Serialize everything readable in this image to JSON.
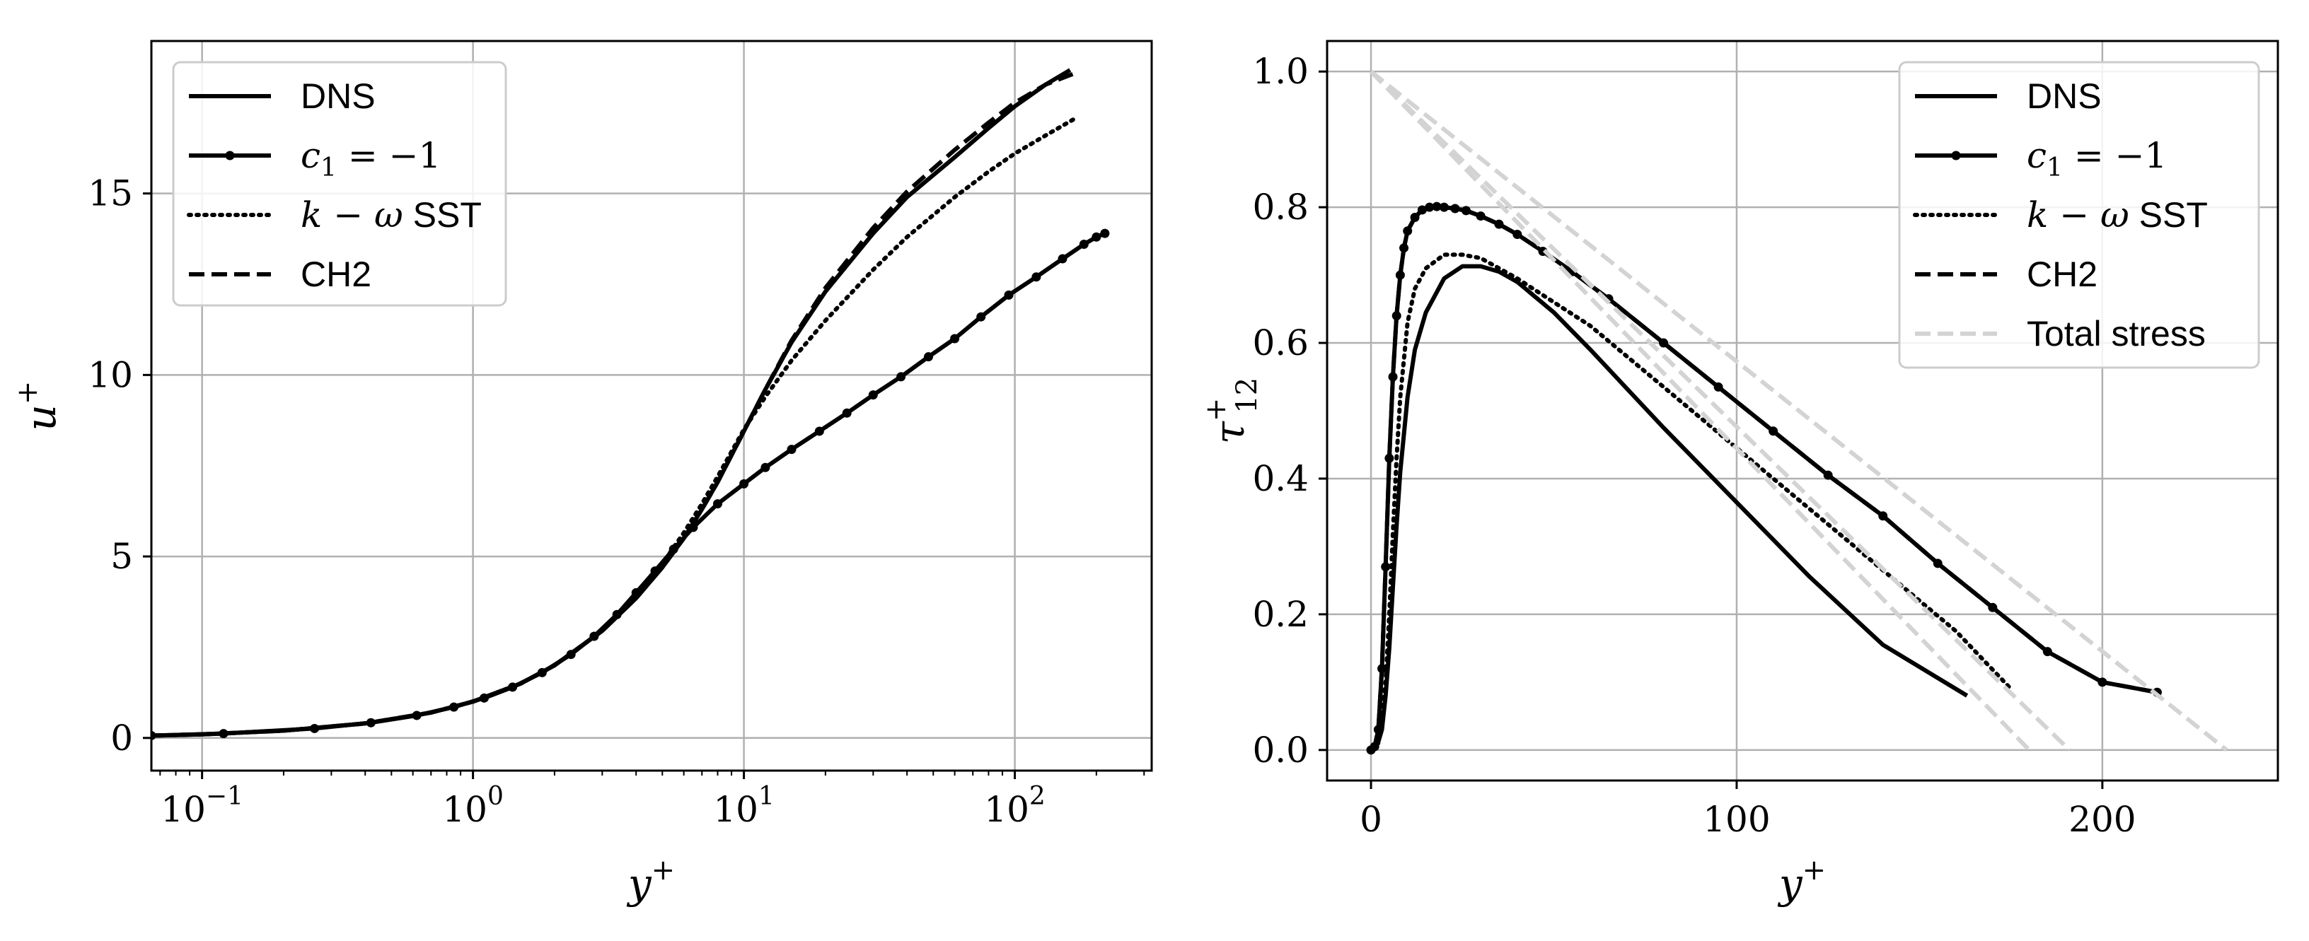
{
  "chart_data": [
    {
      "type": "line",
      "xscale": "log",
      "xlim": [
        0.065,
        320
      ],
      "ylim": [
        -0.9,
        19.2
      ],
      "xlabel": "y+",
      "ylabel": "u+",
      "xticks": [
        {
          "value": 0.1,
          "label": "10",
          "exp": "−1"
        },
        {
          "value": 1,
          "label": "10",
          "exp": "0"
        },
        {
          "value": 10,
          "label": "10",
          "exp": "1"
        },
        {
          "value": 100,
          "label": "10",
          "exp": "2"
        }
      ],
      "yticks": [
        {
          "value": 0,
          "label": "0"
        },
        {
          "value": 5,
          "label": "5"
        },
        {
          "value": 10,
          "label": "10"
        },
        {
          "value": 15,
          "label": "15"
        }
      ],
      "grid": true,
      "legend_position": "top-left",
      "series": [
        {
          "name": "DNS",
          "style": "solid",
          "x": [
            0.065,
            0.1,
            0.2,
            0.4,
            0.7,
            1.0,
            1.5,
            2.0,
            3.0,
            4.0,
            5.0,
            6.0,
            7.0,
            8.0,
            10.0,
            12.0,
            15.0,
            20.0,
            30.0,
            40.0,
            60.0,
            80.0,
            100.0,
            130.0,
            160.0
          ],
          "y": [
            0.065,
            0.1,
            0.2,
            0.4,
            0.7,
            1.0,
            1.5,
            2.0,
            2.95,
            3.85,
            4.7,
            5.5,
            6.3,
            7.05,
            8.45,
            9.6,
            10.9,
            12.3,
            13.9,
            14.9,
            16.0,
            16.8,
            17.4,
            18.0,
            18.4
          ]
        },
        {
          "name": "c_1 = -1",
          "style": "solid-dots",
          "x": [
            0.065,
            0.12,
            0.26,
            0.42,
            0.62,
            0.85,
            1.1,
            1.4,
            1.8,
            2.3,
            2.8,
            3.4,
            4.0,
            4.7,
            5.5,
            6.5,
            8.0,
            10.0,
            12.0,
            15.0,
            19.0,
            24.0,
            30.0,
            38.0,
            48.0,
            60.0,
            75.0,
            95.0,
            120.0,
            150.0,
            180.0,
            200.0,
            215.0
          ],
          "y": [
            0.065,
            0.12,
            0.26,
            0.42,
            0.62,
            0.85,
            1.1,
            1.4,
            1.8,
            2.3,
            2.8,
            3.4,
            4.0,
            4.6,
            5.2,
            5.8,
            6.45,
            7.0,
            7.45,
            7.95,
            8.45,
            8.95,
            9.45,
            9.95,
            10.5,
            11.0,
            11.6,
            12.2,
            12.7,
            13.2,
            13.6,
            13.8,
            13.9
          ]
        },
        {
          "name": "k - ω SST",
          "style": "dotted",
          "x": [
            0.065,
            0.1,
            0.2,
            0.4,
            0.7,
            1.0,
            1.5,
            2.0,
            3.0,
            4.0,
            5.0,
            6.0,
            7.0,
            8.0,
            10.0,
            12.0,
            15.0,
            20.0,
            30.0,
            40.0,
            60.0,
            80.0,
            100.0,
            130.0,
            170.0
          ],
          "y": [
            0.065,
            0.1,
            0.2,
            0.4,
            0.7,
            1.0,
            1.5,
            2.0,
            2.95,
            3.9,
            4.8,
            5.65,
            6.45,
            7.2,
            8.5,
            9.4,
            10.4,
            11.5,
            12.9,
            13.8,
            14.9,
            15.6,
            16.1,
            16.6,
            17.1
          ]
        },
        {
          "name": "CH2",
          "style": "dashed",
          "x": [
            0.065,
            0.1,
            0.2,
            0.4,
            0.7,
            1.0,
            1.5,
            2.0,
            3.0,
            4.0,
            5.0,
            6.0,
            7.0,
            8.0,
            10.0,
            12.0,
            15.0,
            20.0,
            30.0,
            40.0,
            60.0,
            80.0,
            100.0,
            130.0,
            165.0
          ],
          "y": [
            0.065,
            0.1,
            0.2,
            0.4,
            0.7,
            1.0,
            1.5,
            2.0,
            2.95,
            3.85,
            4.7,
            5.5,
            6.3,
            7.05,
            8.45,
            9.6,
            10.95,
            12.4,
            14.05,
            15.05,
            16.2,
            16.95,
            17.5,
            18.0,
            18.3
          ]
        }
      ]
    },
    {
      "type": "line",
      "xlim": [
        -12,
        248
      ],
      "ylim": [
        -0.045,
        1.045
      ],
      "xlabel": "y+",
      "ylabel": "τ+12",
      "xticks": [
        {
          "value": 0,
          "label": "0"
        },
        {
          "value": 100,
          "label": "100"
        },
        {
          "value": 200,
          "label": "200"
        }
      ],
      "yticks": [
        {
          "value": 0,
          "label": "0.0"
        },
        {
          "value": 0.2,
          "label": "0.2"
        },
        {
          "value": 0.4,
          "label": "0.4"
        },
        {
          "value": 0.6,
          "label": "0.6"
        },
        {
          "value": 0.8,
          "label": "0.8"
        },
        {
          "value": 1.0,
          "label": "1.0"
        }
      ],
      "grid": true,
      "legend_position": "top-right",
      "series": [
        {
          "name": "DNS",
          "style": "solid",
          "x": [
            0,
            1,
            2,
            3,
            4,
            5,
            6,
            7,
            8,
            10,
            12,
            15,
            20,
            25,
            30,
            35,
            40,
            50,
            60,
            80,
            100,
            120,
            140,
            163
          ],
          "y": [
            0,
            0.003,
            0.012,
            0.03,
            0.08,
            0.15,
            0.24,
            0.33,
            0.41,
            0.52,
            0.59,
            0.645,
            0.695,
            0.713,
            0.713,
            0.705,
            0.69,
            0.645,
            0.59,
            0.475,
            0.365,
            0.255,
            0.155,
            0.08
          ]
        },
        {
          "name": "c_1 = -1",
          "style": "solid-dots",
          "x": [
            0,
            1,
            2,
            3,
            4,
            5,
            6,
            7,
            8,
            9,
            10,
            12,
            14,
            16,
            18,
            20,
            23,
            26,
            30,
            35,
            40,
            47,
            55,
            65,
            80,
            95,
            110,
            125,
            140,
            155,
            170,
            185,
            200,
            215
          ],
          "y": [
            0,
            0.005,
            0.03,
            0.12,
            0.27,
            0.43,
            0.55,
            0.64,
            0.7,
            0.74,
            0.765,
            0.785,
            0.796,
            0.8,
            0.801,
            0.8,
            0.798,
            0.795,
            0.787,
            0.775,
            0.76,
            0.735,
            0.705,
            0.665,
            0.6,
            0.535,
            0.47,
            0.405,
            0.345,
            0.275,
            0.21,
            0.145,
            0.1,
            0.085
          ]
        },
        {
          "name": "k - ω SST",
          "style": "dotted",
          "x": [
            0,
            2,
            4,
            5,
            6,
            7,
            8,
            10,
            12,
            15,
            20,
            25,
            30,
            35,
            40,
            50,
            60,
            80,
            100,
            120,
            140,
            160,
            175
          ],
          "y": [
            0,
            0.01,
            0.1,
            0.2,
            0.32,
            0.43,
            0.52,
            0.63,
            0.68,
            0.71,
            0.73,
            0.73,
            0.725,
            0.71,
            0.695,
            0.66,
            0.625,
            0.535,
            0.445,
            0.355,
            0.265,
            0.175,
            0.09
          ]
        },
        {
          "name": "CH2",
          "style": "dashed",
          "x": [
            0,
            1,
            2,
            3,
            4,
            5,
            6,
            7,
            8,
            9,
            10,
            12,
            14,
            16,
            18,
            20,
            23,
            26,
            30,
            35,
            40,
            47,
            55,
            65,
            80,
            95,
            110,
            125,
            140,
            155,
            170,
            185,
            200,
            215
          ],
          "y": [
            0,
            0.005,
            0.03,
            0.12,
            0.27,
            0.43,
            0.55,
            0.64,
            0.7,
            0.74,
            0.765,
            0.785,
            0.796,
            0.8,
            0.801,
            0.8,
            0.798,
            0.795,
            0.787,
            0.775,
            0.76,
            0.735,
            0.705,
            0.665,
            0.6,
            0.535,
            0.47,
            0.405,
            0.345,
            0.275,
            0.21,
            0.145,
            0.1,
            0.085
          ]
        },
        {
          "name": "Total stress",
          "style": "dashed-grey",
          "segments": [
            {
              "x": [
                0,
                180
              ],
              "y": [
                1.0,
                0
              ]
            },
            {
              "x": [
                0,
                191
              ],
              "y": [
                1.0,
                0
              ]
            },
            {
              "x": [
                0,
                234
              ],
              "y": [
                1.0,
                0
              ]
            }
          ]
        }
      ]
    }
  ],
  "legends": [
    {
      "items": [
        {
          "label": "DNS",
          "kind": "text",
          "style": "solid"
        },
        {
          "label": "c",
          "sub": "1",
          "rest": " = −1",
          "kind": "math",
          "style": "solid-dots"
        },
        {
          "label": "k − ω",
          "rest": " SST",
          "kind": "math",
          "style": "dotted"
        },
        {
          "label": "CH2",
          "kind": "text",
          "style": "dashed"
        }
      ]
    },
    {
      "items": [
        {
          "label": "DNS",
          "kind": "text",
          "style": "solid"
        },
        {
          "label": "c",
          "sub": "1",
          "rest": " = −1",
          "kind": "math",
          "style": "solid-dots"
        },
        {
          "label": "k − ω",
          "rest": " SST",
          "kind": "math",
          "style": "dotted"
        },
        {
          "label": "CH2",
          "kind": "text",
          "style": "dashed"
        },
        {
          "label": "Total stress",
          "kind": "text",
          "style": "dashed-grey"
        }
      ]
    }
  ],
  "colors": {
    "line": "#000000",
    "grid": "#b0b0b0",
    "total_stress": "#d3d3d3",
    "axes": "#000000"
  }
}
